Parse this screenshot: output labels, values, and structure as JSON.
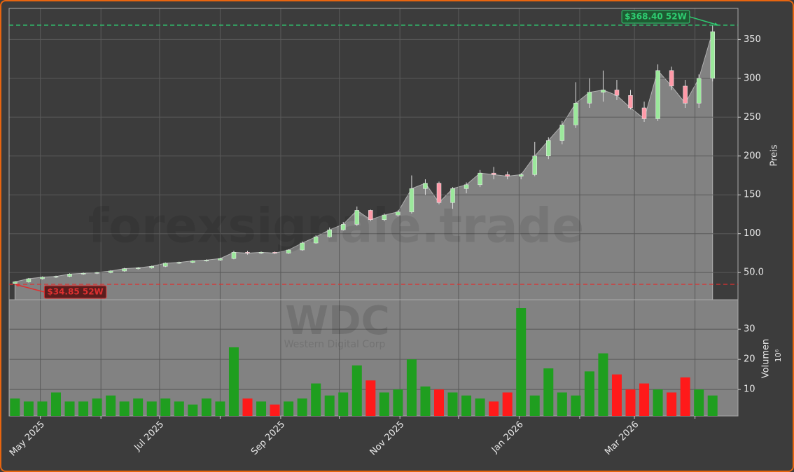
{
  "chart_data": {
    "type": "candlestick",
    "watermark": "forexsignale.trade",
    "symbol": "WDC",
    "company": "Western Digital Corp",
    "ylabel": "Preis",
    "volume_label": "Volumen",
    "volume_unit": "10⁶",
    "x": [
      "2025-04-18",
      "2025-04-25",
      "2025-05-02",
      "2025-05-09",
      "2025-05-16",
      "2025-05-23",
      "2025-05-30",
      "2025-06-06",
      "2025-06-13",
      "2025-06-20",
      "2025-06-27",
      "2025-07-04",
      "2025-07-11",
      "2025-07-18",
      "2025-07-25",
      "2025-08-01",
      "2025-08-08",
      "2025-08-15",
      "2025-08-22",
      "2025-08-29",
      "2025-09-05",
      "2025-09-12",
      "2025-09-19",
      "2025-09-26",
      "2025-10-03",
      "2025-10-10",
      "2025-10-17",
      "2025-10-24",
      "2025-10-31",
      "2025-11-07",
      "2025-11-14",
      "2025-11-21",
      "2025-11-28",
      "2025-12-05",
      "2025-12-12",
      "2025-12-19",
      "2025-12-26",
      "2026-01-02",
      "2026-01-09",
      "2026-01-16",
      "2026-01-23",
      "2026-01-30",
      "2026-02-06",
      "2026-02-13",
      "2026-02-20",
      "2026-02-27",
      "2026-03-06",
      "2026-03-13",
      "2026-03-20",
      "2026-03-27",
      "2026-04-03",
      "2026-04-10"
    ],
    "open": [
      36,
      38,
      42,
      44,
      45,
      48,
      49,
      50,
      52,
      55,
      56,
      58,
      62,
      63,
      65,
      66,
      68,
      76,
      75,
      76,
      75,
      79,
      88,
      96,
      105,
      112,
      130,
      118,
      124,
      128,
      158,
      165,
      140,
      158,
      163,
      178,
      176,
      174,
      176,
      200,
      220,
      240,
      268,
      282,
      285,
      278,
      262,
      248,
      310,
      290,
      268,
      300
    ],
    "high": [
      39,
      43,
      45,
      46,
      49,
      50,
      51,
      53,
      56,
      57,
      59,
      63,
      64,
      66,
      67,
      69,
      78,
      78,
      77,
      77,
      80,
      90,
      98,
      108,
      115,
      135,
      131,
      126,
      130,
      175,
      170,
      167,
      160,
      166,
      182,
      186,
      180,
      178,
      218,
      224,
      245,
      295,
      300,
      310,
      298,
      285,
      270,
      318,
      315,
      298,
      305,
      368.4
    ],
    "low": [
      34.85,
      37,
      41,
      43,
      44,
      47,
      48,
      49,
      51,
      54,
      55,
      57,
      61,
      62,
      64,
      65,
      67,
      73,
      74,
      74,
      74,
      78,
      87,
      95,
      104,
      110,
      116,
      116,
      122,
      126,
      150,
      138,
      132,
      152,
      160,
      170,
      170,
      170,
      174,
      196,
      215,
      236,
      262,
      270,
      272,
      260,
      244,
      245,
      285,
      262,
      262,
      296
    ],
    "close": [
      38,
      42,
      44,
      45,
      48,
      49,
      50,
      52,
      55,
      56,
      58,
      62,
      63,
      65,
      66,
      68,
      76,
      75,
      76,
      75,
      79,
      88,
      96,
      105,
      112,
      130,
      118,
      124,
      128,
      158,
      165,
      140,
      158,
      163,
      178,
      176,
      174,
      176,
      200,
      220,
      240,
      268,
      282,
      285,
      278,
      262,
      248,
      310,
      290,
      268,
      300,
      360
    ],
    "volume": [
      7,
      6,
      6,
      9,
      6,
      6,
      7,
      8,
      6,
      7,
      6,
      7,
      6,
      5,
      7,
      6,
      24,
      7,
      6,
      5,
      6,
      7,
      12,
      8,
      9,
      18,
      13,
      9,
      10,
      20,
      11,
      10,
      9,
      8,
      7,
      6,
      9,
      37,
      8,
      17,
      9,
      8,
      16,
      22,
      15,
      10,
      12,
      10,
      9,
      14,
      10,
      8
    ],
    "up_color": "#1f9e1f",
    "down_color": "#ff1a1a",
    "area_color": "#828282",
    "xlim": [
      "2025-04-15",
      "2026-04-23"
    ],
    "xticks": [
      {
        "value": "2025-05-01",
        "label": "May 2025"
      },
      {
        "value": "2025-07-01",
        "label": "Jul 2025"
      },
      {
        "value": "2025-09-01",
        "label": "Sep 2025"
      },
      {
        "value": "2025-11-01",
        "label": "Nov 2025"
      },
      {
        "value": "2026-01-01",
        "label": "Jan 2026"
      },
      {
        "value": "2026-03-01",
        "label": "Mar 2026"
      }
    ],
    "xminorticks": [
      "2025-06-01",
      "2025-08-01",
      "2025-10-01",
      "2025-12-01",
      "2026-02-01",
      "2026-04-01"
    ],
    "ylim": [
      15,
      390
    ],
    "yticks": [
      {
        "value": 50,
        "label": "50.0"
      },
      100,
      150,
      200,
      250,
      300,
      350
    ],
    "volume_ylim": [
      1.2,
      39.8
    ],
    "volume_yticks": [
      10,
      20,
      30
    ],
    "grid": true,
    "annotations": [
      {
        "text": "$368.40 52W",
        "value": 368.4,
        "x": "2026-04-13",
        "color": "#2ecc71"
      },
      {
        "text": "$34.85 52W",
        "value": 34.85,
        "x": "2025-04-18",
        "color": "#e03030"
      }
    ]
  }
}
